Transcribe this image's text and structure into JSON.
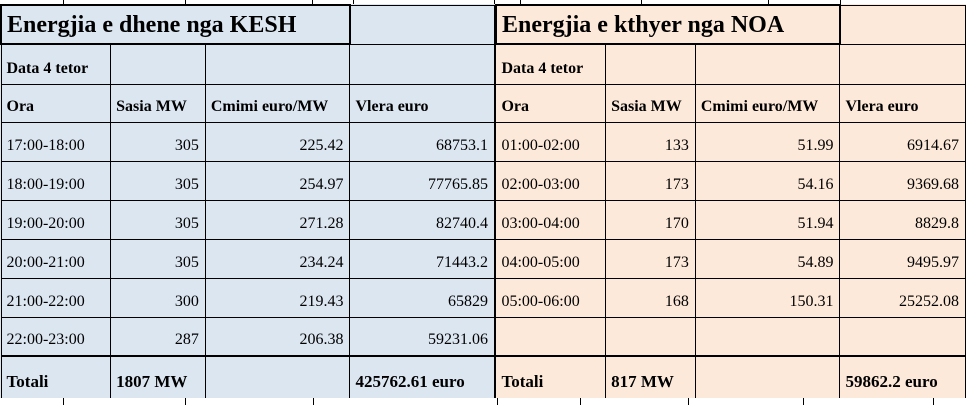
{
  "left": {
    "title": "Energjia e dhene nga KESH",
    "date": "Data 4 tetor",
    "columns": {
      "ora": "Ora",
      "sasia": "Sasia MW",
      "cmimi": "Cmimi euro/MW",
      "vlera": "Vlera euro"
    },
    "rows": [
      [
        "17:00-18:00",
        "305",
        "225.42",
        "68753.1"
      ],
      [
        "18:00-19:00",
        "305",
        "254.97",
        "77765.85"
      ],
      [
        "19:00-20:00",
        "305",
        "271.28",
        "82740.4"
      ],
      [
        "20:00-21:00",
        "305",
        "234.24",
        "71443.2"
      ],
      [
        "21:00-22:00",
        "300",
        "219.43",
        "65829"
      ],
      [
        "22:00-23:00",
        "287",
        "206.38",
        "59231.06"
      ]
    ],
    "total_label": "Totali",
    "total_quantity": "1807 MW",
    "total_value": "425762.61 euro",
    "bg": "#dce6f1"
  },
  "right": {
    "title": "Energjia e kthyer nga NOA",
    "date": "Data 4 tetor",
    "columns": {
      "ora": "Ora",
      "sasia": "Sasia MW",
      "cmimi": "Cmimi euro/MW",
      "vlera": "Vlera euro"
    },
    "rows": [
      [
        "01:00-02:00",
        "133",
        "51.99",
        "6914.67"
      ],
      [
        "02:00-03:00",
        "173",
        "54.16",
        "9369.68"
      ],
      [
        "03:00-04:00",
        "170",
        "51.94",
        "8829.8"
      ],
      [
        "04:00-05:00",
        "173",
        "54.89",
        "9495.97"
      ],
      [
        "05:00-06:00",
        "168",
        "150.31",
        "25252.08"
      ],
      [
        "",
        "",
        "",
        ""
      ]
    ],
    "total_label": "Totali",
    "total_quantity": "817 MW",
    "total_value": "59862.2 euro",
    "bg": "#fde9d9"
  },
  "grid_color": "#000000"
}
